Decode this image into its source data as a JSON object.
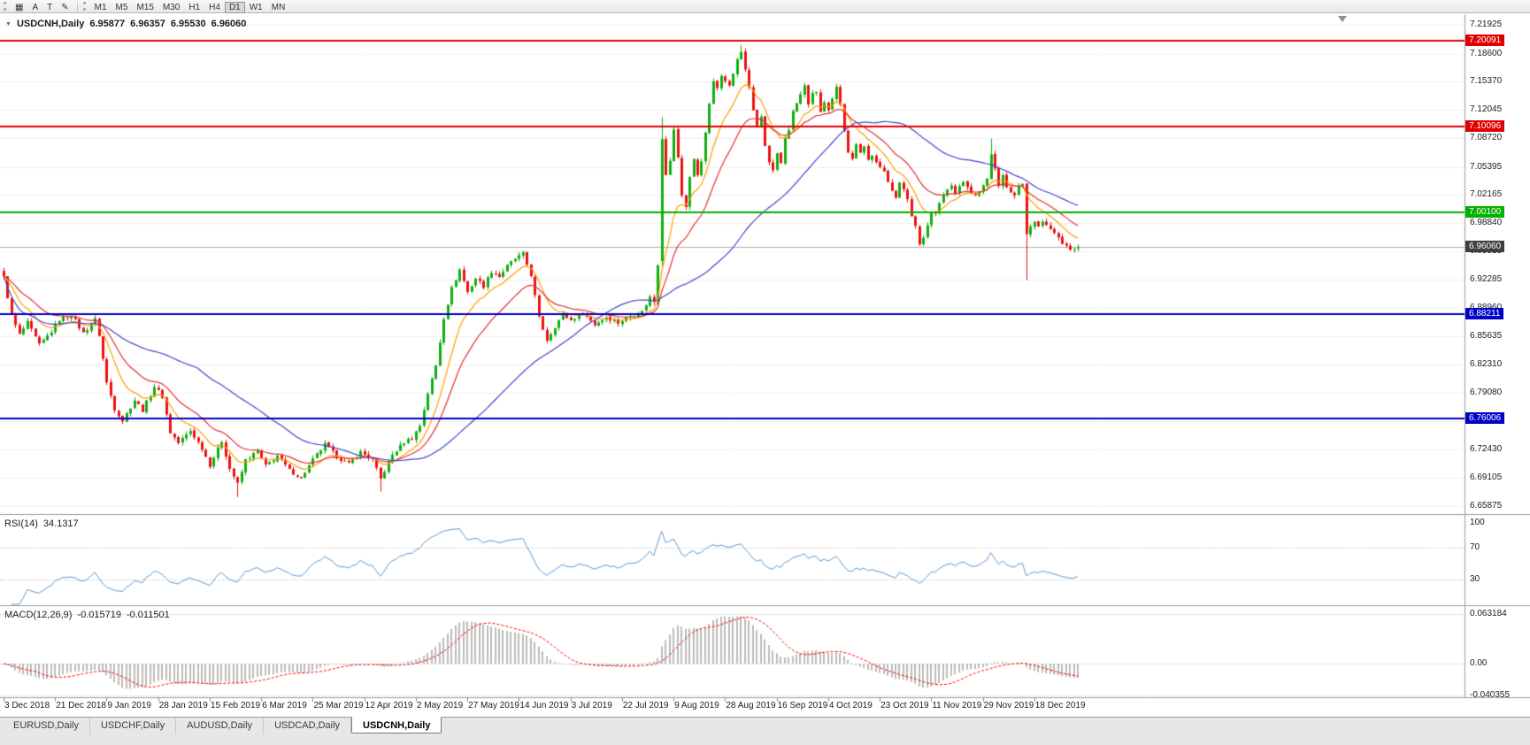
{
  "toolbar": {
    "icons": [
      {
        "name": "chart-window-icon",
        "glyph": "▦"
      },
      {
        "name": "cursor-icon",
        "glyph": "A"
      },
      {
        "name": "text-label-icon",
        "glyph": "T"
      },
      {
        "name": "draw-tools-icon",
        "glyph": "✎"
      }
    ],
    "timeframes": [
      "M1",
      "M5",
      "M15",
      "M30",
      "H1",
      "H4",
      "D1",
      "W1",
      "MN"
    ],
    "active_timeframe": "D1"
  },
  "main_chart": {
    "collapse_arrow": "▼",
    "symbol": "USDCNH,Daily",
    "open": "6.95877",
    "high": "6.96357",
    "low": "6.95530",
    "close": "6.96060"
  },
  "price_axis": {
    "labels": [
      "7.21925",
      "7.18600",
      "7.15370",
      "7.12045",
      "7.08720",
      "7.05395",
      "7.02165",
      "6.98840",
      "6.95515",
      "6.92285",
      "6.88960",
      "6.85635",
      "6.82310",
      "6.79080",
      "6.75755",
      "6.72430",
      "6.69105",
      "6.65875"
    ]
  },
  "hlines": [
    {
      "label": "7.20091",
      "value": 7.20091,
      "color": "#e00000"
    },
    {
      "label": "7.10096",
      "value": 7.10096,
      "color": "#e00000"
    },
    {
      "label": "7.00100",
      "value": 7.001,
      "color": "#00b300"
    },
    {
      "label": "6.88211",
      "value": 6.88211,
      "color": "#0000c8"
    },
    {
      "label": "6.76006",
      "value": 6.76006,
      "color": "#0000c8"
    }
  ],
  "current_price": {
    "label": "6.96060",
    "value": 6.9606,
    "tag_color": "#3f3f3f",
    "line_color": "#aeaeae"
  },
  "rsi_panel": {
    "name": "RSI(14)",
    "value": "34.1317",
    "line_color": "#5b9bd5",
    "axis": [
      {
        "label": "100",
        "value": 100
      },
      {
        "label": "70",
        "value": 70
      },
      {
        "label": "30",
        "value": 30
      }
    ],
    "dotted_levels": [
      70,
      30
    ]
  },
  "macd_panel": {
    "name": "MACD(12,26,9)",
    "main_value": "-0.015719",
    "signal_value": "-0.011501",
    "histogram_color": "#bbbbbb",
    "signal_color": "#ff0000",
    "axis": [
      {
        "label": "0.063184",
        "value": 0.063184
      },
      {
        "label": "0.00",
        "value": 0
      },
      {
        "label": "-0.040355",
        "value": -0.040355
      }
    ]
  },
  "date_axis": {
    "labels": [
      {
        "text": "3 Dec 2018",
        "bar": 0
      },
      {
        "text": "21 Dec 2018",
        "bar": 13
      },
      {
        "text": "9 Jan 2019",
        "bar": 26
      },
      {
        "text": "28 Jan 2019",
        "bar": 39
      },
      {
        "text": "15 Feb 2019",
        "bar": 52
      },
      {
        "text": "6 Mar 2019",
        "bar": 65
      },
      {
        "text": "25 Mar 2019",
        "bar": 78
      },
      {
        "text": "12 Apr 2019",
        "bar": 91
      },
      {
        "text": "2 May 2019",
        "bar": 104
      },
      {
        "text": "27 May 2019",
        "bar": 117
      },
      {
        "text": "14 Jun 2019",
        "bar": 130
      },
      {
        "text": "3 Jul 2019",
        "bar": 143
      },
      {
        "text": "22 Jul 2019",
        "bar": 156
      },
      {
        "text": "9 Aug 2019",
        "bar": 169
      },
      {
        "text": "28 Aug 2019",
        "bar": 182
      },
      {
        "text": "16 Sep 2019",
        "bar": 195
      },
      {
        "text": "4 Oct 2019",
        "bar": 208
      },
      {
        "text": "23 Oct 2019",
        "bar": 221
      },
      {
        "text": "11 Nov 2019",
        "bar": 234
      },
      {
        "text": "29 Nov 2019",
        "bar": 247
      },
      {
        "text": "18 Dec 2019",
        "bar": 260
      }
    ]
  },
  "tabs": [
    {
      "label": "EURUSD,Daily",
      "active": false
    },
    {
      "label": "USDCHF,Daily",
      "active": false
    },
    {
      "label": "AUDUSD,Daily",
      "active": false
    },
    {
      "label": "USDCAD,Daily",
      "active": false
    },
    {
      "label": "USDCNH,Daily",
      "active": true
    }
  ],
  "chart_data": {
    "type": "candlestick",
    "symbol": "USDCNH",
    "timeframe": "Daily",
    "bars": 272,
    "ylim": [
      6.65,
      7.232
    ],
    "up_color": "#0faf0f",
    "down_color": "#ee1111",
    "noise": 0.0045,
    "wick": 0.004,
    "moving_averages": [
      {
        "type": "ema",
        "period": 10,
        "color": "#ff9f00"
      },
      {
        "type": "ema",
        "period": 20,
        "color": "#e63232"
      },
      {
        "type": "sma",
        "period": 50,
        "color": "#4646cf"
      }
    ],
    "indicators": {
      "rsi_period": 14,
      "macd": [
        12,
        26,
        9
      ],
      "rsi_last": 34.1317,
      "macd_last": -0.015719,
      "macd_signal_last": -0.011501
    },
    "last_bar": {
      "open": 6.95877,
      "high": 6.96357,
      "low": 6.9553,
      "close": 6.9606
    },
    "anchors": [
      [
        0,
        6.925
      ],
      [
        2,
        6.88
      ],
      [
        4,
        6.858
      ],
      [
        6,
        6.872
      ],
      [
        9,
        6.846
      ],
      [
        12,
        6.862
      ],
      [
        14,
        6.876
      ],
      [
        17,
        6.881
      ],
      [
        20,
        6.86
      ],
      [
        23,
        6.876
      ],
      [
        24,
        6.858
      ],
      [
        26,
        6.802
      ],
      [
        28,
        6.772
      ],
      [
        30,
        6.758
      ],
      [
        33,
        6.782
      ],
      [
        35,
        6.77
      ],
      [
        38,
        6.798
      ],
      [
        40,
        6.786
      ],
      [
        42,
        6.744
      ],
      [
        44,
        6.732
      ],
      [
        47,
        6.746
      ],
      [
        50,
        6.726
      ],
      [
        52,
        6.706
      ],
      [
        55,
        6.734
      ],
      [
        57,
        6.702
      ],
      [
        59,
        6.684
      ],
      [
        61,
        6.712
      ],
      [
        64,
        6.722
      ],
      [
        66,
        6.705
      ],
      [
        69,
        6.717
      ],
      [
        72,
        6.7
      ],
      [
        75,
        6.691
      ],
      [
        78,
        6.712
      ],
      [
        81,
        6.73
      ],
      [
        84,
        6.716
      ],
      [
        87,
        6.707
      ],
      [
        90,
        6.721
      ],
      [
        93,
        6.712
      ],
      [
        95,
        6.69
      ],
      [
        98,
        6.718
      ],
      [
        101,
        6.733
      ],
      [
        103,
        6.738
      ],
      [
        105,
        6.752
      ],
      [
        107,
        6.79
      ],
      [
        109,
        6.822
      ],
      [
        111,
        6.878
      ],
      [
        113,
        6.912
      ],
      [
        115,
        6.934
      ],
      [
        117,
        6.908
      ],
      [
        119,
        6.924
      ],
      [
        121,
        6.915
      ],
      [
        123,
        6.932
      ],
      [
        125,
        6.926
      ],
      [
        127,
        6.938
      ],
      [
        129,
        6.947
      ],
      [
        131,
        6.952
      ],
      [
        133,
        6.928
      ],
      [
        135,
        6.878
      ],
      [
        137,
        6.852
      ],
      [
        139,
        6.868
      ],
      [
        141,
        6.882
      ],
      [
        143,
        6.875
      ],
      [
        146,
        6.884
      ],
      [
        149,
        6.87
      ],
      [
        152,
        6.879
      ],
      [
        155,
        6.872
      ],
      [
        158,
        6.88
      ],
      [
        161,
        6.885
      ],
      [
        163,
        6.902
      ],
      [
        164,
        6.897
      ],
      [
        165,
        6.941
      ],
      [
        166,
        7.088
      ],
      [
        167,
        7.046
      ],
      [
        168,
        7.06
      ],
      [
        169,
        7.098
      ],
      [
        170,
        7.064
      ],
      [
        171,
        7.021
      ],
      [
        172,
        7.008
      ],
      [
        173,
        7.042
      ],
      [
        174,
        7.062
      ],
      [
        175,
        7.045
      ],
      [
        176,
        7.062
      ],
      [
        177,
        7.092
      ],
      [
        178,
        7.128
      ],
      [
        179,
        7.152
      ],
      [
        180,
        7.146
      ],
      [
        181,
        7.162
      ],
      [
        182,
        7.156
      ],
      [
        183,
        7.148
      ],
      [
        184,
        7.163
      ],
      [
        185,
        7.178
      ],
      [
        186,
        7.188
      ],
      [
        187,
        7.168
      ],
      [
        188,
        7.148
      ],
      [
        189,
        7.118
      ],
      [
        190,
        7.102
      ],
      [
        191,
        7.112
      ],
      [
        192,
        7.078
      ],
      [
        193,
        7.058
      ],
      [
        194,
        7.048
      ],
      [
        195,
        7.068
      ],
      [
        196,
        7.058
      ],
      [
        197,
        7.088
      ],
      [
        198,
        7.098
      ],
      [
        199,
        7.118
      ],
      [
        200,
        7.128
      ],
      [
        201,
        7.138
      ],
      [
        202,
        7.148
      ],
      [
        203,
        7.128
      ],
      [
        204,
        7.138
      ],
      [
        205,
        7.142
      ],
      [
        206,
        7.118
      ],
      [
        207,
        7.128
      ],
      [
        208,
        7.118
      ],
      [
        209,
        7.132
      ],
      [
        210,
        7.146
      ],
      [
        211,
        7.128
      ],
      [
        212,
        7.098
      ],
      [
        213,
        7.072
      ],
      [
        214,
        7.062
      ],
      [
        215,
        7.082
      ],
      [
        216,
        7.072
      ],
      [
        217,
        7.078
      ],
      [
        218,
        7.062
      ],
      [
        219,
        7.068
      ],
      [
        220,
        7.058
      ],
      [
        221,
        7.052
      ],
      [
        222,
        7.048
      ],
      [
        223,
        7.038
      ],
      [
        224,
        7.028
      ],
      [
        225,
        7.018
      ],
      [
        226,
        7.034
      ],
      [
        227,
        7.028
      ],
      [
        228,
        7.018
      ],
      [
        229,
        6.998
      ],
      [
        230,
        6.984
      ],
      [
        231,
        6.962
      ],
      [
        232,
        6.972
      ],
      [
        233,
        6.986
      ],
      [
        234,
        7.0
      ],
      [
        235,
        7.002
      ],
      [
        236,
        7.012
      ],
      [
        237,
        7.022
      ],
      [
        238,
        7.027
      ],
      [
        239,
        7.032
      ],
      [
        240,
        7.021
      ],
      [
        241,
        7.031
      ],
      [
        242,
        7.036
      ],
      [
        243,
        7.03
      ],
      [
        244,
        7.024
      ],
      [
        245,
        7.019
      ],
      [
        246,
        7.026
      ],
      [
        247,
        7.031
      ],
      [
        248,
        7.042
      ],
      [
        249,
        7.067
      ],
      [
        250,
        7.051
      ],
      [
        251,
        7.032
      ],
      [
        252,
        7.042
      ],
      [
        253,
        7.032
      ],
      [
        254,
        7.026
      ],
      [
        255,
        7.021
      ],
      [
        256,
        7.031
      ],
      [
        257,
        7.036
      ],
      [
        258,
        6.976
      ],
      [
        259,
        6.986
      ],
      [
        260,
        6.991
      ],
      [
        261,
        6.986
      ],
      [
        262,
        6.991
      ],
      [
        263,
        6.986
      ],
      [
        264,
        6.981
      ],
      [
        265,
        6.976
      ],
      [
        266,
        6.971
      ],
      [
        267,
        6.966
      ],
      [
        268,
        6.962
      ],
      [
        269,
        6.957
      ],
      [
        270,
        6.958
      ],
      [
        271,
        6.9606
      ]
    ],
    "specials": {
      "59": {
        "low": 6.6688
      },
      "95": {
        "low": 6.6752
      },
      "166": {
        "open": 6.944,
        "high": 7.112
      },
      "186": {
        "high": 7.1963
      },
      "249": {
        "high": 7.0867
      },
      "258": {
        "low": 6.9215
      },
      "271": {
        "open": 6.95877,
        "high": 6.96357,
        "low": 6.9553,
        "close": 6.9606
      }
    }
  }
}
